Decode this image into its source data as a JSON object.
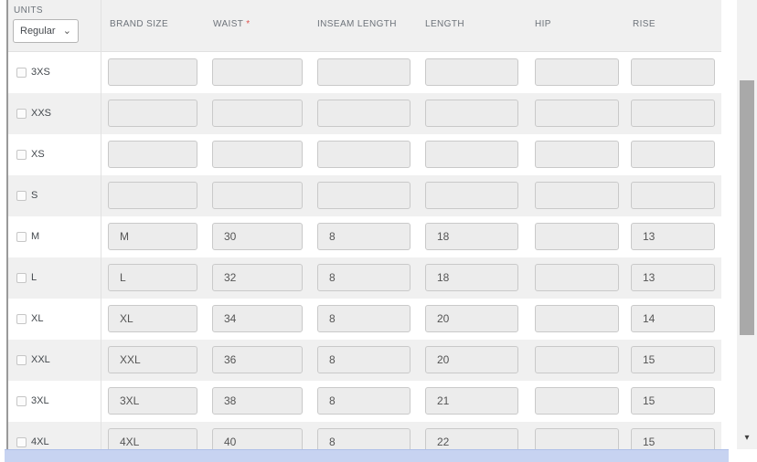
{
  "units": {
    "label": "UNITS",
    "selected_option": "Regular"
  },
  "table": {
    "columns": [
      {
        "label": "BRAND SIZE",
        "required": false
      },
      {
        "label": "WAIST",
        "required": true
      },
      {
        "label": "INSEAM LENGTH",
        "required": false
      },
      {
        "label": "LENGTH",
        "required": false
      },
      {
        "label": "HIP",
        "required": false
      },
      {
        "label": "RISE",
        "required": false
      }
    ],
    "required_mark": "*",
    "rows": [
      {
        "size": "3XS",
        "checked": false,
        "values": [
          "",
          "",
          "",
          "",
          "",
          ""
        ]
      },
      {
        "size": "XXS",
        "checked": false,
        "values": [
          "",
          "",
          "",
          "",
          "",
          ""
        ]
      },
      {
        "size": "XS",
        "checked": false,
        "values": [
          "",
          "",
          "",
          "",
          "",
          ""
        ]
      },
      {
        "size": "S",
        "checked": false,
        "values": [
          "",
          "",
          "",
          "",
          "",
          ""
        ]
      },
      {
        "size": "M",
        "checked": false,
        "values": [
          "M",
          "30",
          "8",
          "18",
          "",
          "13"
        ]
      },
      {
        "size": "L",
        "checked": false,
        "values": [
          "L",
          "32",
          "8",
          "18",
          "",
          "13"
        ]
      },
      {
        "size": "XL",
        "checked": false,
        "values": [
          "XL",
          "34",
          "8",
          "20",
          "",
          "14"
        ]
      },
      {
        "size": "XXL",
        "checked": false,
        "values": [
          "XXL",
          "36",
          "8",
          "20",
          "",
          "15"
        ]
      },
      {
        "size": "3XL",
        "checked": false,
        "values": [
          "3XL",
          "38",
          "8",
          "21",
          "",
          "15"
        ]
      },
      {
        "size": "4XL",
        "checked": false,
        "values": [
          "4XL",
          "40",
          "8",
          "22",
          "",
          "15"
        ]
      }
    ]
  },
  "icons": {
    "chevron_down": "⌄",
    "scroll_down": "▾"
  },
  "colors": {
    "required_asterisk": "#e0524e",
    "horizontal_scrollbar_thumb": "#c7d3f1",
    "vertical_scrollbar_thumb": "#a9a9a9",
    "row_alt_background": "#f0f0f0",
    "input_background": "#ececec"
  }
}
